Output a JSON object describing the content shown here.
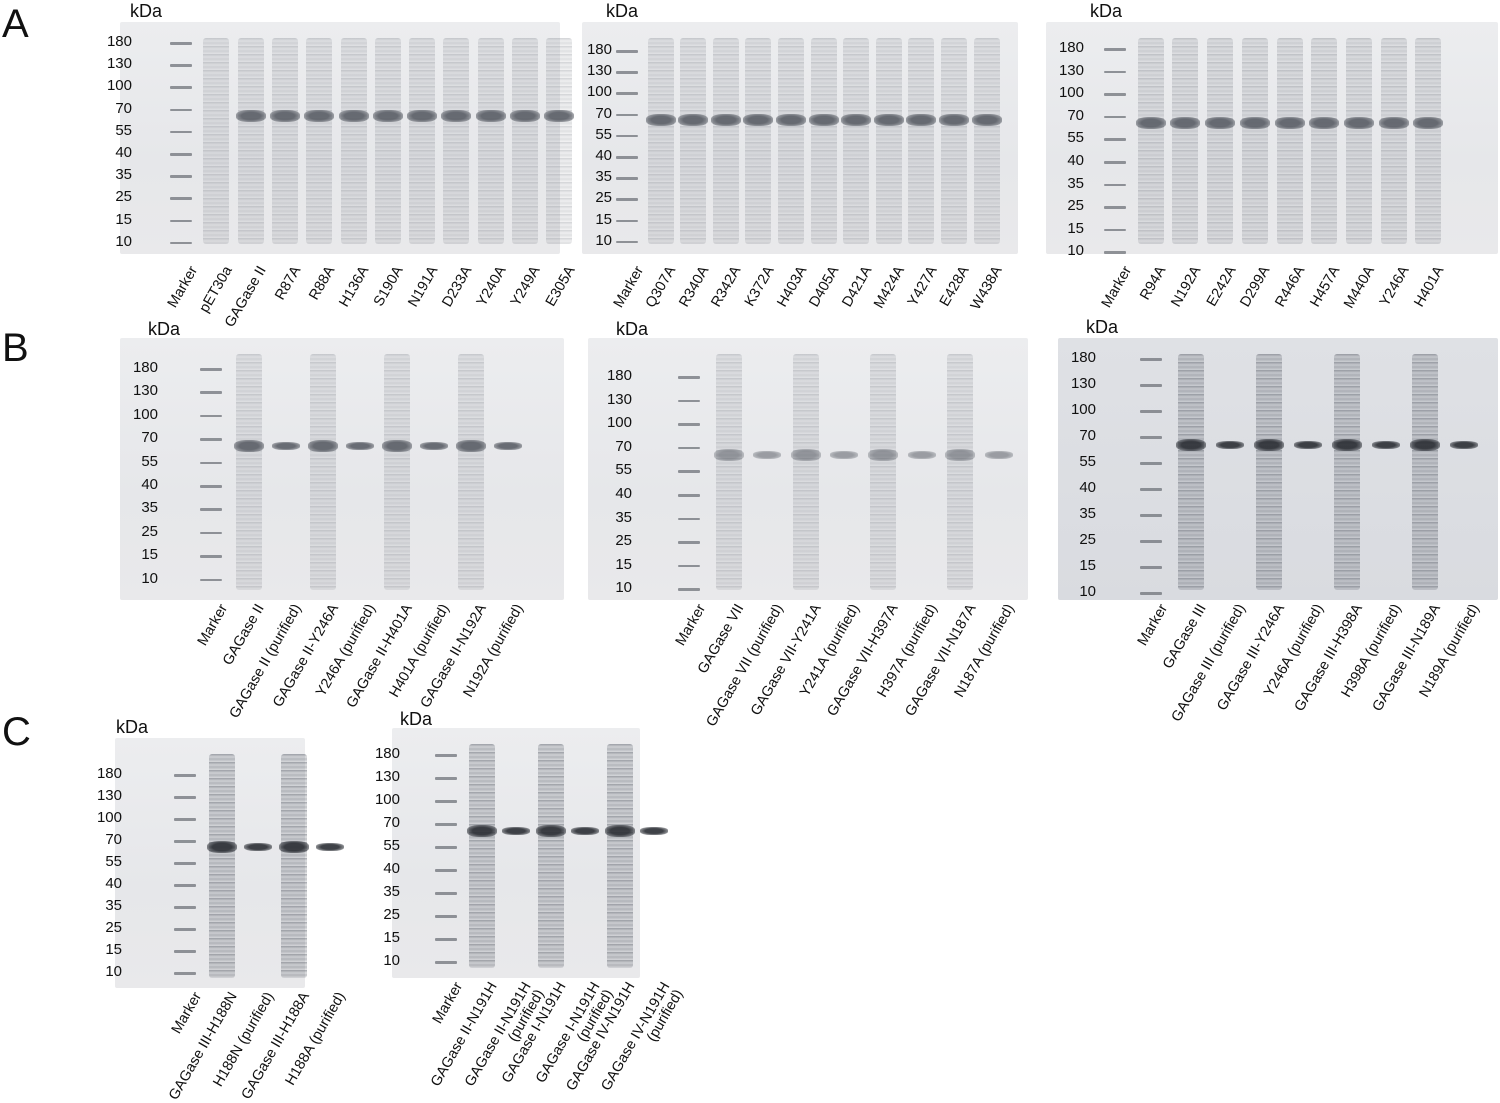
{
  "panels": [
    {
      "letter": "A",
      "gels": [
        {
          "unit": "kDa",
          "markers": [
            "180",
            "130",
            "100",
            "70",
            "55",
            "40",
            "35",
            "25",
            "15",
            "10"
          ],
          "lanes": [
            "Marker",
            "pET30a",
            "GAGase II",
            "R87A",
            "R88A",
            "H136A",
            "S190A",
            "N191A",
            "D233A",
            "Y240A",
            "Y249A",
            "E305A"
          ]
        },
        {
          "unit": "kDa",
          "markers": [
            "180",
            "130",
            "100",
            "70",
            "55",
            "40",
            "35",
            "25",
            "15",
            "10"
          ],
          "lanes": [
            "Marker",
            "Q307A",
            "R340A",
            "R342A",
            "K372A",
            "H403A",
            "D405A",
            "D421A",
            "M424A",
            "Y427A",
            "E428A",
            "W438A"
          ]
        },
        {
          "unit": "kDa",
          "markers": [
            "180",
            "130",
            "100",
            "70",
            "55",
            "40",
            "35",
            "25",
            "15",
            "10"
          ],
          "lanes": [
            "Marker",
            "R94A",
            "N192A",
            "E242A",
            "D299A",
            "R446A",
            "H457A",
            "M440A",
            "Y246A",
            "H401A"
          ]
        }
      ]
    },
    {
      "letter": "B",
      "gels": [
        {
          "unit": "kDa",
          "markers": [
            "180",
            "130",
            "100",
            "70",
            "55",
            "40",
            "35",
            "25",
            "15",
            "10"
          ],
          "lanes": [
            "Marker",
            "GAGase II",
            "GAGase II (purified)",
            "GAGase II-Y246A",
            "Y246A (purified)",
            "GAGase II-H401A",
            "H401A (purified)",
            "GAGase II-N192A",
            "N192A (purified)"
          ]
        },
        {
          "unit": "kDa",
          "markers": [
            "180",
            "130",
            "100",
            "70",
            "55",
            "40",
            "35",
            "25",
            "15",
            "10"
          ],
          "lanes": [
            "Marker",
            "GAGase VII",
            "GAGase VII (purified)",
            "GAGase VII-Y241A",
            "Y241A (purified)",
            "GAGase VII-H397A",
            "H397A (purified)",
            "GAGase VII-N187A",
            "N187A (purified)"
          ]
        },
        {
          "unit": "kDa",
          "markers": [
            "180",
            "130",
            "100",
            "70",
            "55",
            "40",
            "35",
            "25",
            "15",
            "10"
          ],
          "lanes": [
            "Marker",
            "GAGase III",
            "GAGase III (purified)",
            "GAGase III-Y246A",
            "Y246A (purified)",
            "GAGase III-H398A",
            "H398A (purified)",
            "GAGase III-N189A",
            "N189A (purified)"
          ]
        }
      ]
    },
    {
      "letter": "C",
      "gels": [
        {
          "unit": "kDa",
          "markers": [
            "180",
            "130",
            "100",
            "70",
            "55",
            "40",
            "35",
            "25",
            "15",
            "10"
          ],
          "lanes": [
            "Marker",
            "GAGase III-H188N",
            "H188N (purified)",
            "GAGase III-H188A",
            "H188A (purified)"
          ]
        },
        {
          "unit": "kDa",
          "markers": [
            "180",
            "130",
            "100",
            "70",
            "55",
            "40",
            "35",
            "25",
            "15",
            "10"
          ],
          "lanes": [
            "Marker",
            "GAGase II-N191H",
            "GAGase II-N191H|(purified)",
            "GAGase I-N191H",
            "GAGase I-N191H|(purified)",
            "GAGase IV-N191H",
            "GAGase IV-N191H|(purified)"
          ]
        }
      ]
    }
  ]
}
